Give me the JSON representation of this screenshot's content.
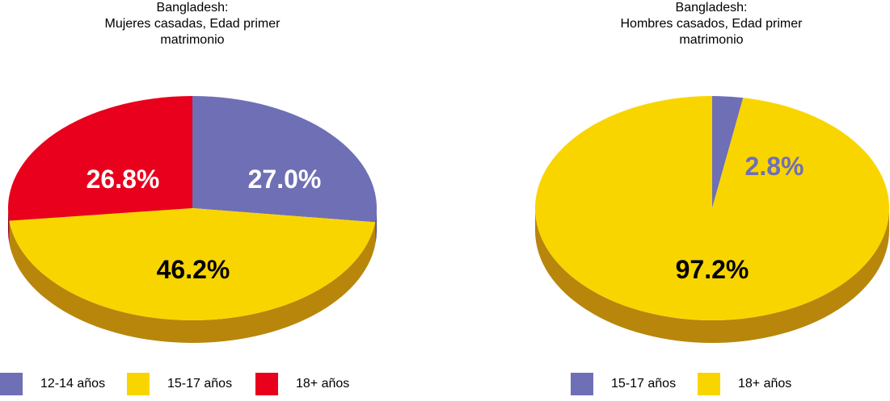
{
  "colors": {
    "purple": "#6f6fb6",
    "yellow": "#f9d500",
    "red": "#e8001c",
    "yellow_side": "#b8860b",
    "purple_side": "#4a4a80",
    "red_side": "#9a0012"
  },
  "chart_data": [
    {
      "type": "pie",
      "title_lines": [
        "Bangladesh:",
        "Mujeres casadas, Edad primer",
        "matrimonio"
      ],
      "slices": [
        {
          "label": "12-14 años",
          "value": 27.0,
          "display": "27.0%",
          "color": "#6f6fb6",
          "label_color": "#ffffff"
        },
        {
          "label": "15-17 años",
          "value": 46.2,
          "display": "46.2%",
          "color": "#f9d500",
          "label_color": "#000000"
        },
        {
          "label": "18+ años",
          "value": 26.8,
          "display": "26.8%",
          "color": "#e8001c",
          "label_color": "#ffffff"
        }
      ],
      "legend": [
        "12-14 años",
        "15-17 años",
        "18+ años"
      ],
      "legend_placement": "bottom"
    },
    {
      "type": "pie",
      "title_lines": [
        "Bangladesh:",
        "Hombres casados, Edad primer",
        "matrimonio"
      ],
      "slices": [
        {
          "label": "15-17 años",
          "value": 2.8,
          "display": "2.8%",
          "color": "#6f6fb6",
          "label_color": "#6f6fb6"
        },
        {
          "label": "18+ años",
          "value": 97.2,
          "display": "97.2%",
          "color": "#f9d500",
          "label_color": "#000000"
        }
      ],
      "legend": [
        "15-17 años",
        "18+ años"
      ],
      "legend_placement": "bottom"
    }
  ]
}
